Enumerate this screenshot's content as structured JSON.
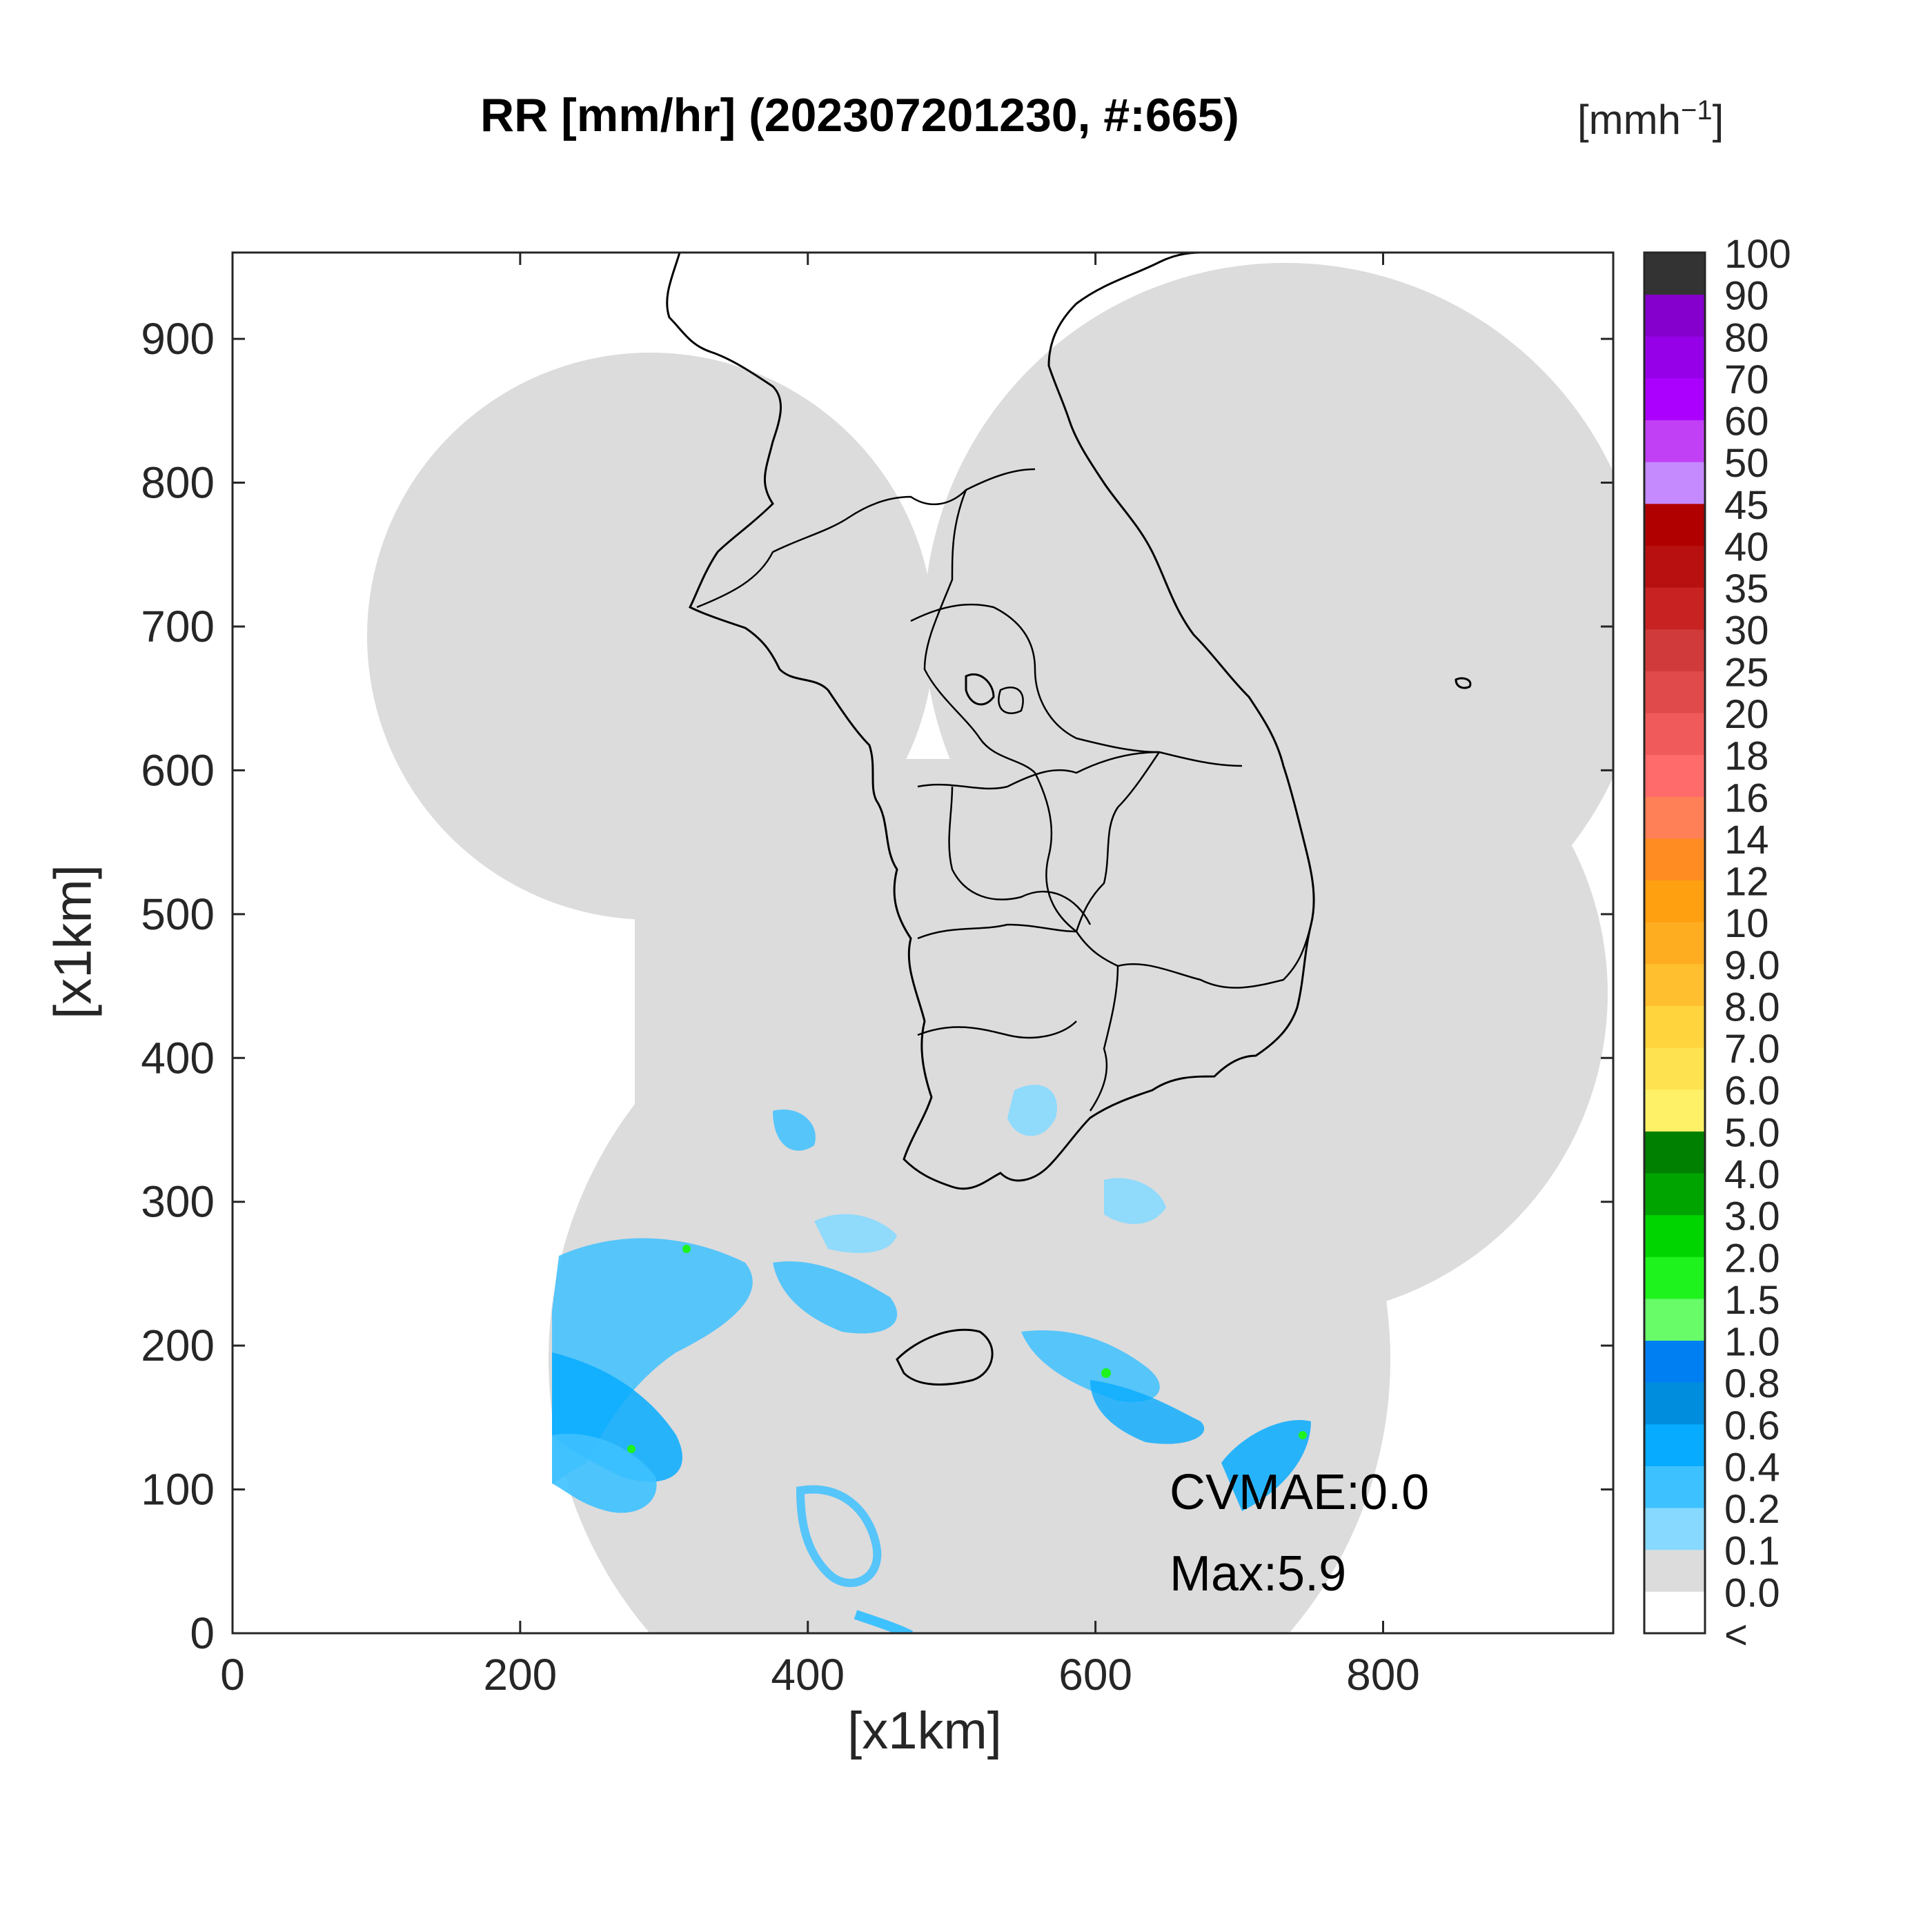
{
  "title": "RR [mm/hr] (202307201230, #:665)",
  "xlabel": "[x1km]",
  "ylabel": "[x1km]",
  "colorbar": {
    "unit_label": "[mmh",
    "unit_exponent": "−1",
    "unit_close": "]",
    "levels": [
      {
        "label": "<",
        "color": "#ffffff"
      },
      {
        "label": "0.0",
        "color": "#dcdcdc"
      },
      {
        "label": "0.1",
        "color": "#87d9ff"
      },
      {
        "label": "0.2",
        "color": "#3ec1ff"
      },
      {
        "label": "0.4",
        "color": "#07abff"
      },
      {
        "label": "0.6",
        "color": "#008dde"
      },
      {
        "label": "0.8",
        "color": "#007ff3"
      },
      {
        "label": "1.0",
        "color": "#69fc69"
      },
      {
        "label": "1.5",
        "color": "#1ef31e"
      },
      {
        "label": "2.0",
        "color": "#00d500"
      },
      {
        "label": "3.0",
        "color": "#00a400"
      },
      {
        "label": "4.0",
        "color": "#008000"
      },
      {
        "label": "5.0",
        "color": "#fff167"
      },
      {
        "label": "6.0",
        "color": "#ffe24f"
      },
      {
        "label": "7.0",
        "color": "#ffd43c"
      },
      {
        "label": "8.0",
        "color": "#ffbf2f"
      },
      {
        "label": "9.0",
        "color": "#ffad20"
      },
      {
        "label": "10",
        "color": "#ffa010"
      },
      {
        "label": "12",
        "color": "#ff8c22"
      },
      {
        "label": "14",
        "color": "#ff7f56"
      },
      {
        "label": "16",
        "color": "#ff6a6a"
      },
      {
        "label": "18",
        "color": "#f05a5a"
      },
      {
        "label": "20",
        "color": "#e04a4a"
      },
      {
        "label": "25",
        "color": "#d03a3a"
      },
      {
        "label": "30",
        "color": "#c82222"
      },
      {
        "label": "35",
        "color": "#b81010"
      },
      {
        "label": "40",
        "color": "#b00000"
      },
      {
        "label": "45",
        "color": "#c68aff"
      },
      {
        "label": "50",
        "color": "#c140f5"
      },
      {
        "label": "60",
        "color": "#ac00ff"
      },
      {
        "label": "70",
        "color": "#9500e8"
      },
      {
        "label": "80",
        "color": "#8500cd"
      },
      {
        "label": "90",
        "color": "#333333"
      },
      {
        "label": "100",
        "color": "#333333"
      }
    ]
  },
  "stats": {
    "cvmae": "CVMAE:0.0",
    "max": "Max:5.9"
  },
  "chart_data": {
    "type": "heatmap",
    "title": "RR [mm/hr] (202307201230, #:665)",
    "xlabel": "[x1km]",
    "ylabel": "[x1km]",
    "xlim": [
      0,
      960
    ],
    "ylim": [
      0,
      960
    ],
    "x_ticks": [
      "0",
      "200",
      "400",
      "600",
      "800"
    ],
    "y_ticks": [
      "0",
      "100",
      "200",
      "300",
      "400",
      "500",
      "600",
      "700",
      "800",
      "900"
    ],
    "x_tick_values": [
      0,
      200,
      400,
      600,
      800
    ],
    "y_tick_values": [
      0,
      100,
      200,
      300,
      400,
      500,
      600,
      700,
      800,
      900
    ],
    "max_value": 5.9,
    "cvmae": 0.0,
    "no_data_color": "#ffffff",
    "zero_rain_color": "#dcdcdc"
  }
}
